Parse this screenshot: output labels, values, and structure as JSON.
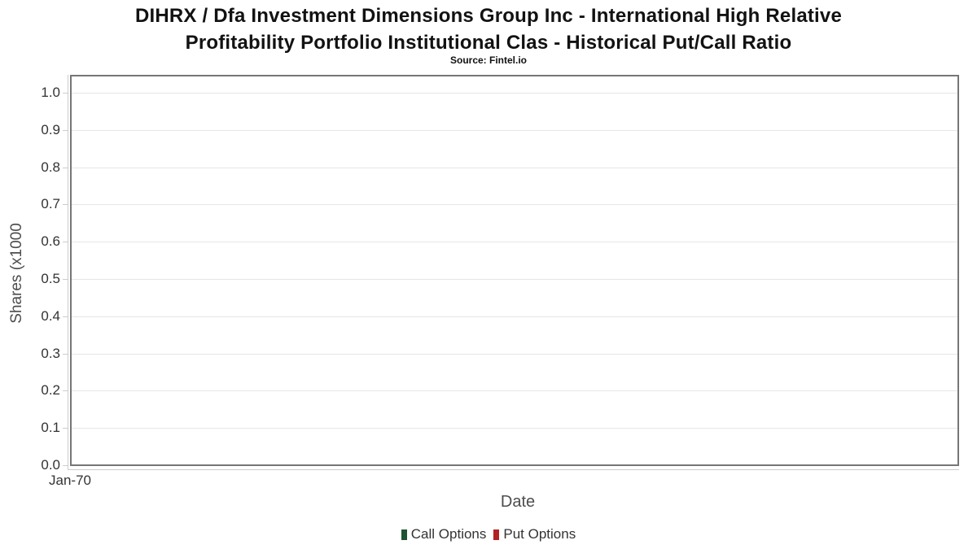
{
  "header": {
    "title_line1": "DIHRX / Dfa Investment Dimensions Group Inc - International High Relative",
    "title_line2": "Profitability Portfolio Institutional Clas - Historical Put/Call Ratio",
    "subtitle": "Source: Fintel.io"
  },
  "chart_data": {
    "type": "line",
    "title": "DIHRX / Dfa Investment Dimensions Group Inc - International High Relative Profitability Portfolio Institutional Clas - Historical Put/Call Ratio",
    "subtitle": "Source: Fintel.io",
    "xlabel": "Date",
    "ylabel": "Shares (x1000",
    "x_ticks": [
      "Jan-70"
    ],
    "y_ticks": [
      "0.0",
      "0.1",
      "0.2",
      "0.3",
      "0.4",
      "0.5",
      "0.6",
      "0.7",
      "0.8",
      "0.9",
      "1.0"
    ],
    "ylim": [
      0.0,
      1.0
    ],
    "grid": "horizontal",
    "legend_position": "bottom-center",
    "series": [
      {
        "name": "Call Options",
        "color": "#1e5430",
        "values": []
      },
      {
        "name": "Put Options",
        "color": "#b22222",
        "values": []
      }
    ]
  },
  "colors": {
    "background": "#ffffff",
    "title_text": "#121212",
    "plot_border": "#767676",
    "grid_line": "#e6e6e6",
    "axis_line": "#cccccc",
    "tick_label": "#333333",
    "axis_title": "#4d4d4d",
    "legend_text": "#333333"
  }
}
